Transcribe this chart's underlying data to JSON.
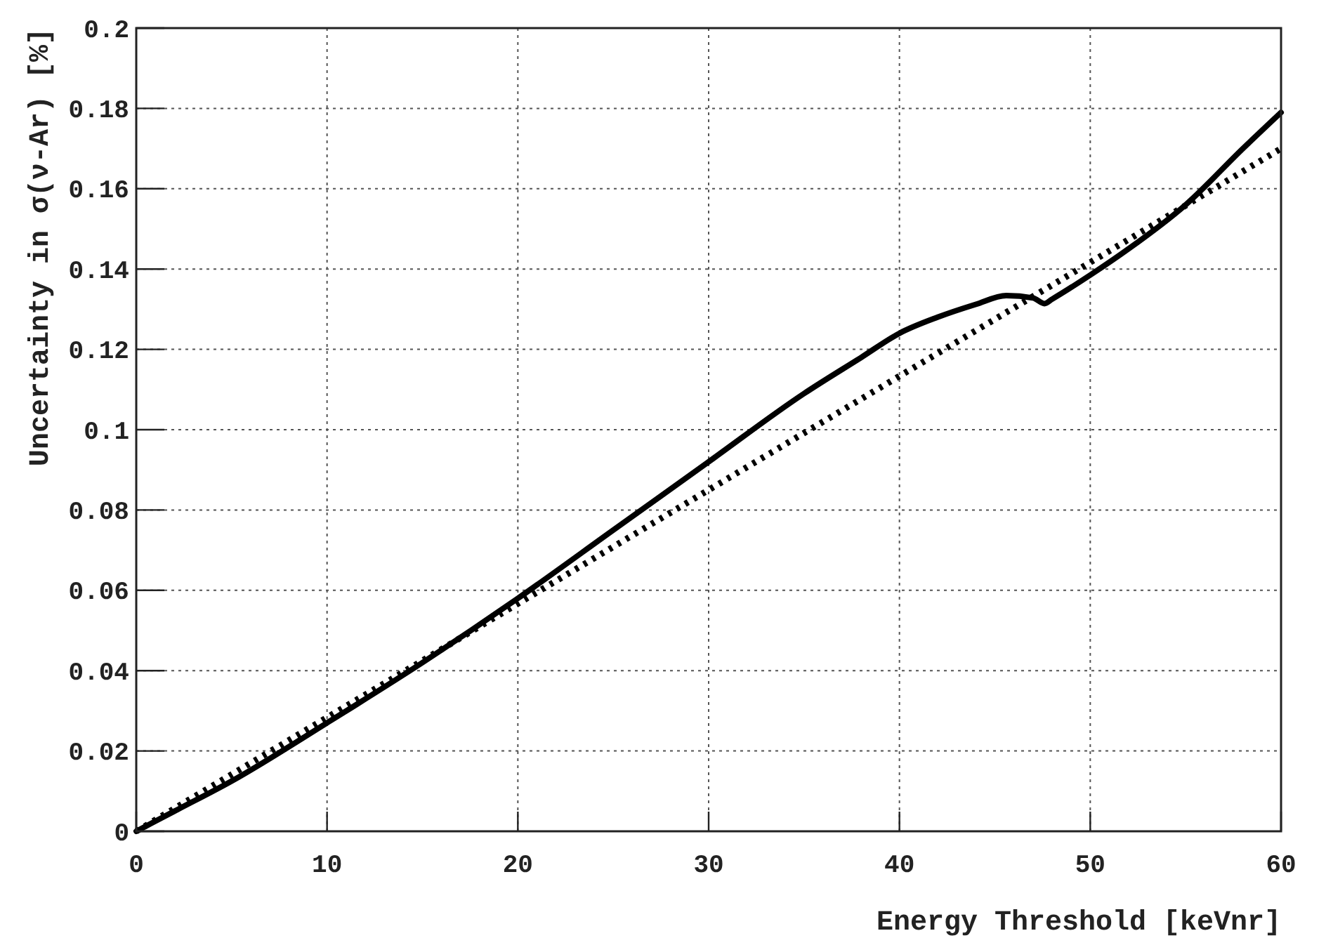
{
  "chart_data": {
    "type": "line",
    "xlabel": "Energy Threshold [keVnr]",
    "ylabel": "Uncertainty in σ(ν-Ar) [%]",
    "xlim": [
      0,
      60
    ],
    "ylim": [
      0,
      0.2
    ],
    "xticks": [
      0,
      10,
      20,
      30,
      40,
      50,
      60
    ],
    "yticks": [
      0,
      0.02,
      0.04,
      0.06,
      0.08,
      0.1,
      0.12,
      0.14,
      0.16,
      0.18,
      0.2
    ],
    "grid": true,
    "marker": "none",
    "series": [
      {
        "color": "#000000",
        "line_style": "solid",
        "x": [
          0,
          2,
          5,
          10,
          15,
          20,
          25,
          30,
          35,
          38,
          40,
          42,
          44,
          45.6,
          47,
          47.6,
          48,
          50,
          52,
          55,
          58,
          60
        ],
        "values": [
          0,
          0.005,
          0.0125,
          0.027,
          0.042,
          0.058,
          0.075,
          0.092,
          0.109,
          0.118,
          0.124,
          0.128,
          0.1312,
          0.1334,
          0.1328,
          0.1314,
          0.1325,
          0.1385,
          0.145,
          0.156,
          0.17,
          0.179
        ]
      },
      {
        "color": "#000000",
        "line_style": "dotted",
        "x": [
          0,
          60
        ],
        "values": [
          0,
          0.17
        ]
      }
    ]
  }
}
